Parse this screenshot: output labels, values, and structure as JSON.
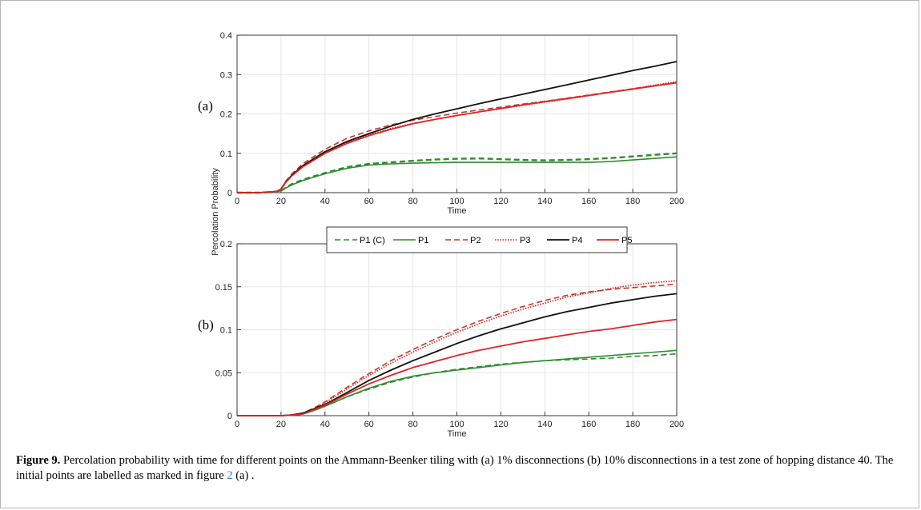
{
  "figure": {
    "panels": [
      {
        "label": "(a)"
      },
      {
        "label": "(b)"
      }
    ],
    "shared_ylabel": "Percolation Probability",
    "caption": {
      "label": "Figure 9.",
      "text_before": " Percolation probability with time for different points on the Ammann-Beenker tiling with (a) 1% disconnections (b) 10% disconnections in a test zone of hopping distance 40. The initial points are labelled as marked in figure ",
      "ref": "2",
      "text_after": " (a) ."
    }
  },
  "colors": {
    "green": "#2e8b2e",
    "red": "#e32424",
    "darkred": "#c0392b",
    "black": "#111111"
  },
  "chart_data": [
    {
      "type": "line",
      "panel": "(a)",
      "xlabel": "Time",
      "ylabel": "Percolation Probability",
      "xlim": [
        0,
        200
      ],
      "ylim": [
        0,
        0.4
      ],
      "xticks": [
        "0",
        "20",
        "40",
        "60",
        "80",
        "100",
        "120",
        "140",
        "160",
        "180",
        "200"
      ],
      "yticks": [
        "0",
        "0.1",
        "0.2",
        "0.3",
        "0.4"
      ],
      "grid": true,
      "x": [
        0,
        10,
        18,
        20,
        22,
        25,
        30,
        40,
        50,
        60,
        70,
        80,
        90,
        100,
        110,
        120,
        130,
        140,
        150,
        160,
        170,
        180,
        190,
        200
      ],
      "series": [
        {
          "name": "P1 (C)",
          "color": "green",
          "dash": "dashed",
          "width": 2.4,
          "values": [
            0,
            0,
            0.002,
            0.005,
            0.012,
            0.022,
            0.033,
            0.05,
            0.065,
            0.073,
            0.077,
            0.081,
            0.084,
            0.086,
            0.087,
            0.085,
            0.083,
            0.082,
            0.083,
            0.085,
            0.088,
            0.092,
            0.096,
            0.1
          ]
        },
        {
          "name": "P1",
          "color": "green",
          "dash": "solid",
          "width": 1.6,
          "values": [
            0,
            0,
            0.002,
            0.005,
            0.011,
            0.02,
            0.031,
            0.048,
            0.062,
            0.07,
            0.073,
            0.075,
            0.076,
            0.077,
            0.077,
            0.077,
            0.077,
            0.077,
            0.077,
            0.077,
            0.079,
            0.083,
            0.087,
            0.091
          ]
        },
        {
          "name": "P2",
          "color": "darkred",
          "dash": "dashed",
          "width": 1.6,
          "values": [
            0,
            0,
            0.003,
            0.01,
            0.028,
            0.048,
            0.074,
            0.11,
            0.138,
            0.157,
            0.172,
            0.184,
            0.193,
            0.202,
            0.21,
            0.217,
            0.225,
            0.232,
            0.24,
            0.248,
            0.256,
            0.264,
            0.272,
            0.28
          ]
        },
        {
          "name": "P3",
          "color": "red",
          "dash": "dotted",
          "width": 1.6,
          "values": [
            0,
            0,
            0.003,
            0.009,
            0.025,
            0.044,
            0.068,
            0.102,
            0.128,
            0.147,
            0.163,
            0.176,
            0.186,
            0.196,
            0.205,
            0.213,
            0.222,
            0.23,
            0.238,
            0.246,
            0.255,
            0.264,
            0.273,
            0.282
          ]
        },
        {
          "name": "P4",
          "color": "black",
          "dash": "solid",
          "width": 1.8,
          "values": [
            0,
            0,
            0.003,
            0.009,
            0.026,
            0.045,
            0.069,
            0.104,
            0.13,
            0.15,
            0.169,
            0.186,
            0.2,
            0.213,
            0.226,
            0.238,
            0.25,
            0.262,
            0.274,
            0.286,
            0.298,
            0.31,
            0.321,
            0.333
          ]
        },
        {
          "name": "P5",
          "color": "red",
          "dash": "solid",
          "width": 1.8,
          "values": [
            0,
            0,
            0.003,
            0.009,
            0.025,
            0.043,
            0.066,
            0.1,
            0.125,
            0.145,
            0.161,
            0.175,
            0.186,
            0.196,
            0.205,
            0.214,
            0.223,
            0.231,
            0.239,
            0.247,
            0.255,
            0.263,
            0.271,
            0.279
          ]
        }
      ]
    },
    {
      "type": "line",
      "panel": "(b)",
      "xlabel": "Time",
      "ylabel": "Percolation Probability",
      "xlim": [
        0,
        200
      ],
      "ylim": [
        0,
        0.2
      ],
      "xticks": [
        "0",
        "20",
        "40",
        "60",
        "80",
        "100",
        "120",
        "140",
        "160",
        "180",
        "200"
      ],
      "yticks": [
        "0",
        "0.05",
        "0.1",
        "0.15",
        "0.2"
      ],
      "grid": true,
      "legend_position": "top",
      "x": [
        0,
        10,
        20,
        25,
        30,
        35,
        40,
        50,
        60,
        70,
        80,
        90,
        100,
        110,
        120,
        130,
        140,
        150,
        160,
        170,
        180,
        190,
        200
      ],
      "series": [
        {
          "name": "P1 (C)",
          "color": "green",
          "dash": "dashed",
          "width": 1.6,
          "values": [
            0,
            0,
            0,
            0.0005,
            0.002,
            0.006,
            0.011,
            0.022,
            0.031,
            0.039,
            0.045,
            0.05,
            0.054,
            0.057,
            0.06,
            0.062,
            0.064,
            0.065,
            0.066,
            0.067,
            0.069,
            0.07,
            0.072
          ]
        },
        {
          "name": "P1",
          "color": "green",
          "dash": "solid",
          "width": 1.6,
          "values": [
            0,
            0,
            0,
            0.0005,
            0.002,
            0.006,
            0.011,
            0.022,
            0.032,
            0.04,
            0.046,
            0.05,
            0.053,
            0.056,
            0.059,
            0.062,
            0.064,
            0.066,
            0.068,
            0.07,
            0.072,
            0.074,
            0.076
          ]
        },
        {
          "name": "P2",
          "color": "darkred",
          "dash": "dashed",
          "width": 1.6,
          "values": [
            0,
            0,
            0,
            0.001,
            0.003,
            0.009,
            0.016,
            0.033,
            0.049,
            0.064,
            0.077,
            0.089,
            0.1,
            0.11,
            0.119,
            0.127,
            0.134,
            0.14,
            0.144,
            0.147,
            0.149,
            0.151,
            0.153
          ]
        },
        {
          "name": "P3",
          "color": "red",
          "dash": "dotted",
          "width": 1.6,
          "values": [
            0,
            0,
            0,
            0.001,
            0.003,
            0.008,
            0.015,
            0.031,
            0.047,
            0.061,
            0.074,
            0.086,
            0.097,
            0.107,
            0.116,
            0.124,
            0.131,
            0.138,
            0.143,
            0.148,
            0.152,
            0.155,
            0.157
          ]
        },
        {
          "name": "P4",
          "color": "black",
          "dash": "solid",
          "width": 1.8,
          "values": [
            0,
            0,
            0,
            0.0008,
            0.003,
            0.008,
            0.013,
            0.027,
            0.041,
            0.053,
            0.064,
            0.074,
            0.084,
            0.093,
            0.101,
            0.108,
            0.115,
            0.121,
            0.126,
            0.131,
            0.135,
            0.139,
            0.142
          ]
        },
        {
          "name": "P5",
          "color": "red",
          "dash": "solid",
          "width": 1.8,
          "values": [
            0,
            0,
            0,
            0.0006,
            0.002,
            0.007,
            0.012,
            0.025,
            0.037,
            0.047,
            0.056,
            0.063,
            0.07,
            0.076,
            0.081,
            0.086,
            0.09,
            0.094,
            0.098,
            0.101,
            0.105,
            0.109,
            0.112
          ]
        }
      ]
    }
  ]
}
